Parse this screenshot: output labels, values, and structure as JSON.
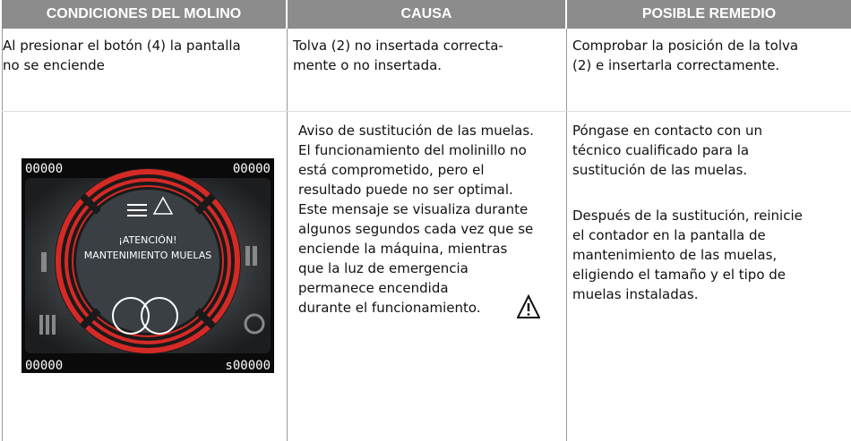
{
  "table": {
    "headers": [
      "CONDICIONES DEL MOLINO",
      "CAUSA",
      "POSIBLE REMEDIO"
    ],
    "rows": [
      [
        [
          "Al presionar el botón (4) la pantalla",
          "no se enciende"
        ],
        [
          "Tolva (2) no insertada correcta-",
          "mente o no insertada."
        ],
        [
          "Comprobar la posición de la tolva",
          "(2) e insertarla correctamente."
        ]
      ],
      [
        [],
        [
          "Aviso de sustitución de las muelas.",
          "El funcionamiento del molinillo no",
          "está comprometido, pero el",
          "resultado puede no ser optimal.",
          "Este mensaje se visualiza durante",
          "algunos segundos cada vez que se",
          "enciende la máquina, mientras",
          "que la luz de emergencia",
          "permanece encendida",
          "durante el funcionamiento."
        ],
        [
          [
            "Póngase en contacto con un",
            "técnico cualificado para la",
            "sustitución de las muelas."
          ],
          [
            "Después de la sustitución, reinicie",
            "el contador en la pantalla de",
            "mantenimiento de las muelas,",
            "eligiendo el tamaño y el tipo de",
            "muelas instaladas."
          ]
        ]
      ]
    ]
  },
  "display": {
    "counters": [
      "00000",
      "00000",
      "00000",
      "s00000"
    ],
    "message": [
      "¡ATENCIÓN!",
      "MANTENIMIENTO MUELAS"
    ]
  }
}
